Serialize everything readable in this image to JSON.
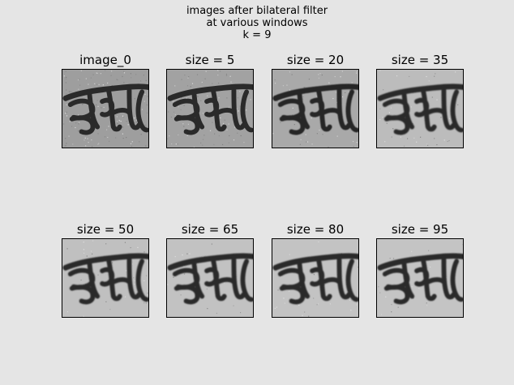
{
  "figure": {
    "title_lines": [
      "images after bilateral filter",
      "at various windows",
      "k = 9"
    ]
  },
  "panels": [
    {
      "title": "image_0",
      "bg": "#9e9e9e",
      "ink": "#2a2a2a",
      "noise": 0.55,
      "blur": 0.2
    },
    {
      "title": "size = 5",
      "bg": "#a2a2a2",
      "ink": "#2a2a2a",
      "noise": 0.45,
      "blur": 0.3
    },
    {
      "title": "size = 20",
      "bg": "#a9a9a9",
      "ink": "#262626",
      "noise": 0.25,
      "blur": 0.6
    },
    {
      "title": "size = 35",
      "bg": "#bcbcbc",
      "ink": "#2b2b2b",
      "noise": 0.18,
      "blur": 0.8
    },
    {
      "title": "size = 50",
      "bg": "#c0c0c0",
      "ink": "#2c2c2c",
      "noise": 0.15,
      "blur": 0.9
    },
    {
      "title": "size = 65",
      "bg": "#c2c2c2",
      "ink": "#2a2a2a",
      "noise": 0.14,
      "blur": 0.9
    },
    {
      "title": "size = 80",
      "bg": "#c3c3c3",
      "ink": "#2a2a2a",
      "noise": 0.13,
      "blur": 0.9
    },
    {
      "title": "size = 95",
      "bg": "#c4c4c4",
      "ink": "#2a2a2a",
      "noise": 0.12,
      "blur": 0.9
    }
  ]
}
